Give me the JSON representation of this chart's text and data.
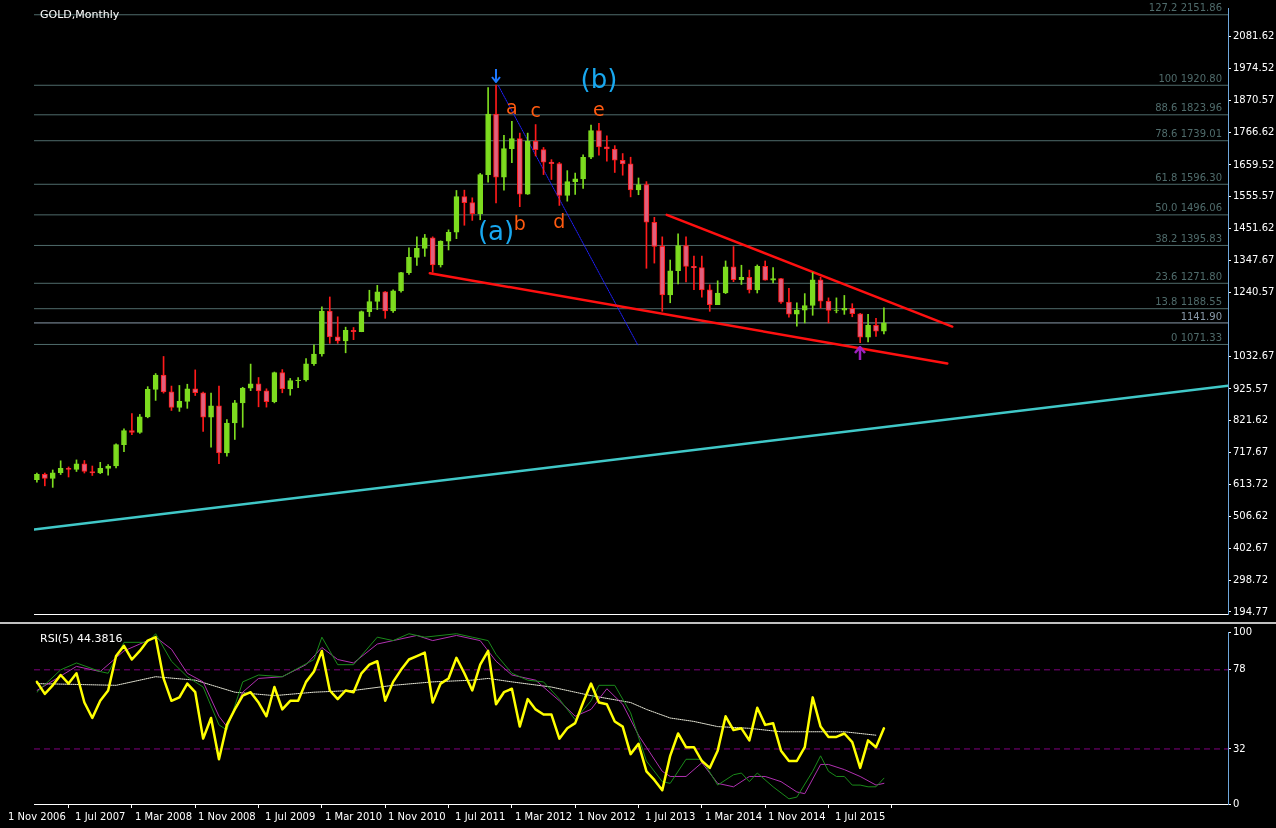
{
  "chart_data": [
    {
      "type": "candlestick",
      "title": "GOLD,Monthly",
      "tick_labels": "y",
      "xlim": [
        "2006-10-20",
        "2019-05-15"
      ],
      "ylim": [
        188,
        2174
      ],
      "yticks": [
        194.77,
        298.72,
        402.67,
        506.62,
        613.72,
        717.67,
        821.62,
        925.57,
        1032.67,
        1240.57,
        1347.67,
        1451.62,
        1555.57,
        1659.52,
        1766.62,
        1870.57,
        1974.52,
        2081.62
      ],
      "x": [
        "2006-11",
        "2006-12",
        "2007-01",
        "2007-02",
        "2007-03",
        "2007-04",
        "2007-05",
        "2007-06",
        "2007-07",
        "2007-08",
        "2007-09",
        "2007-10",
        "2007-11",
        "2007-12",
        "2008-01",
        "2008-02",
        "2008-03",
        "2008-04",
        "2008-05",
        "2008-06",
        "2008-07",
        "2008-08",
        "2008-09",
        "2008-10",
        "2008-11",
        "2008-12",
        "2009-01",
        "2009-02",
        "2009-03",
        "2009-04",
        "2009-05",
        "2009-06",
        "2009-07",
        "2009-08",
        "2009-09",
        "2009-10",
        "2009-11",
        "2009-12",
        "2010-01",
        "2010-02",
        "2010-03",
        "2010-04",
        "2010-05",
        "2010-06",
        "2010-07",
        "2010-08",
        "2010-09",
        "2010-10",
        "2010-11",
        "2010-12",
        "2011-01",
        "2011-02",
        "2011-03",
        "2011-04",
        "2011-05",
        "2011-06",
        "2011-07",
        "2011-08",
        "2011-09",
        "2011-10",
        "2011-11",
        "2011-12",
        "2012-01",
        "2012-02",
        "2012-03",
        "2012-04",
        "2012-05",
        "2012-06",
        "2012-07",
        "2012-08",
        "2012-09",
        "2012-10",
        "2012-11",
        "2012-12",
        "2013-01",
        "2013-02",
        "2013-03",
        "2013-04",
        "2013-05",
        "2013-06",
        "2013-07",
        "2013-08",
        "2013-09",
        "2013-10",
        "2013-11",
        "2013-12",
        "2014-01",
        "2014-02",
        "2014-03",
        "2014-04",
        "2014-05",
        "2014-06",
        "2014-07",
        "2014-08",
        "2014-09",
        "2014-10",
        "2014-11",
        "2014-12",
        "2015-01",
        "2015-02",
        "2015-03",
        "2015-04",
        "2015-05",
        "2015-06",
        "2015-07",
        "2015-08",
        "2015-09",
        "2015-10"
      ],
      "ohlc": [
        [
          628,
          650,
          620,
          646
        ],
        [
          646,
          650,
          608,
          632
        ],
        [
          632,
          660,
          603,
          651
        ],
        [
          651,
          690,
          645,
          665
        ],
        [
          665,
          670,
          637,
          662
        ],
        [
          662,
          693,
          655,
          680
        ],
        [
          680,
          691,
          650,
          655
        ],
        [
          655,
          673,
          642,
          650
        ],
        [
          650,
          685,
          648,
          665
        ],
        [
          665,
          678,
          643,
          673
        ],
        [
          673,
          746,
          667,
          743
        ],
        [
          743,
          795,
          720,
          789
        ],
        [
          789,
          845,
          776,
          783
        ],
        [
          783,
          842,
          780,
          834
        ],
        [
          834,
          933,
          831,
          924
        ],
        [
          924,
          976,
          888,
          971
        ],
        [
          971,
          1032,
          912,
          916
        ],
        [
          916,
          935,
          855,
          865
        ],
        [
          865,
          937,
          852,
          885
        ],
        [
          885,
          941,
          862,
          926
        ],
        [
          926,
          988,
          904,
          913
        ],
        [
          913,
          915,
          786,
          833
        ],
        [
          833,
          912,
          735,
          870
        ],
        [
          870,
          935,
          681,
          716
        ],
        [
          716,
          825,
          705,
          814
        ],
        [
          814,
          888,
          760,
          880
        ],
        [
          880,
          931,
          800,
          928
        ],
        [
          928,
          1007,
          920,
          942
        ],
        [
          942,
          963,
          867,
          919
        ],
        [
          919,
          926,
          866,
          884
        ],
        [
          884,
          981,
          880,
          979
        ],
        [
          979,
          989,
          913,
          926
        ],
        [
          926,
          960,
          905,
          953
        ],
        [
          953,
          963,
          930,
          955
        ],
        [
          955,
          1025,
          951,
          1008
        ],
        [
          1008,
          1070,
          1003,
          1040
        ],
        [
          1040,
          1195,
          1033,
          1181
        ],
        [
          1181,
          1227,
          1075,
          1096
        ],
        [
          1096,
          1162,
          1075,
          1083
        ],
        [
          1083,
          1128,
          1044,
          1118
        ],
        [
          1118,
          1127,
          1087,
          1113
        ],
        [
          1113,
          1181,
          1113,
          1179
        ],
        [
          1179,
          1249,
          1163,
          1212
        ],
        [
          1212,
          1265,
          1186,
          1244
        ],
        [
          1244,
          1245,
          1157,
          1181
        ],
        [
          1181,
          1250,
          1176,
          1247
        ],
        [
          1247,
          1308,
          1243,
          1307
        ],
        [
          1307,
          1388,
          1301,
          1357
        ],
        [
          1357,
          1424,
          1330,
          1386
        ],
        [
          1386,
          1432,
          1360,
          1421
        ],
        [
          1421,
          1424,
          1308,
          1332
        ],
        [
          1332,
          1411,
          1325,
          1410
        ],
        [
          1410,
          1447,
          1381,
          1439
        ],
        [
          1439,
          1576,
          1418,
          1556
        ],
        [
          1556,
          1577,
          1462,
          1536
        ],
        [
          1536,
          1552,
          1478,
          1500
        ],
        [
          1500,
          1632,
          1480,
          1628
        ],
        [
          1628,
          1913,
          1603,
          1826
        ],
        [
          1826,
          1921,
          1535,
          1620
        ],
        [
          1620,
          1757,
          1577,
          1713
        ],
        [
          1713,
          1803,
          1667,
          1746
        ],
        [
          1746,
          1764,
          1523,
          1564
        ],
        [
          1564,
          1764,
          1563,
          1738
        ],
        [
          1738,
          1792,
          1689,
          1710
        ],
        [
          1710,
          1717,
          1628,
          1669
        ],
        [
          1669,
          1677,
          1612,
          1664
        ],
        [
          1664,
          1668,
          1527,
          1560
        ],
        [
          1560,
          1641,
          1541,
          1605
        ],
        [
          1605,
          1633,
          1563,
          1614
        ],
        [
          1614,
          1693,
          1583,
          1685
        ],
        [
          1685,
          1790,
          1680,
          1772
        ],
        [
          1772,
          1796,
          1692,
          1719
        ],
        [
          1719,
          1755,
          1672,
          1712
        ],
        [
          1712,
          1723,
          1635,
          1675
        ],
        [
          1675,
          1697,
          1626,
          1663
        ],
        [
          1663,
          1685,
          1555,
          1578
        ],
        [
          1578,
          1617,
          1562,
          1595
        ],
        [
          1595,
          1605,
          1321,
          1472
        ],
        [
          1472,
          1488,
          1338,
          1393
        ],
        [
          1393,
          1424,
          1180,
          1234
        ],
        [
          1234,
          1348,
          1208,
          1313
        ],
        [
          1313,
          1434,
          1270,
          1395
        ],
        [
          1395,
          1424,
          1276,
          1327
        ],
        [
          1327,
          1361,
          1251,
          1323
        ],
        [
          1323,
          1361,
          1226,
          1250
        ],
        [
          1250,
          1267,
          1180,
          1202
        ],
        [
          1202,
          1280,
          1202,
          1240
        ],
        [
          1240,
          1345,
          1238,
          1326
        ],
        [
          1326,
          1392,
          1277,
          1284
        ],
        [
          1284,
          1331,
          1268,
          1291
        ],
        [
          1291,
          1315,
          1240,
          1250
        ],
        [
          1250,
          1332,
          1240,
          1327
        ],
        [
          1327,
          1345,
          1282,
          1282
        ],
        [
          1282,
          1323,
          1273,
          1287
        ],
        [
          1287,
          1288,
          1206,
          1210
        ],
        [
          1210,
          1255,
          1161,
          1171
        ],
        [
          1171,
          1208,
          1131,
          1184
        ],
        [
          1184,
          1238,
          1142,
          1199
        ],
        [
          1199,
          1307,
          1167,
          1283
        ],
        [
          1283,
          1292,
          1191,
          1213
        ],
        [
          1213,
          1224,
          1142,
          1183
        ],
        [
          1183,
          1224,
          1175,
          1184
        ],
        [
          1184,
          1232,
          1170,
          1190
        ],
        [
          1190,
          1205,
          1162,
          1172
        ],
        [
          1172,
          1173,
          1077,
          1095
        ],
        [
          1095,
          1170,
          1080,
          1134
        ],
        [
          1134,
          1157,
          1098,
          1115
        ],
        [
          1115,
          1191,
          1106,
          1142
        ]
      ],
      "series": [
        {
          "type": "line",
          "color": "#ff1010",
          "x": [
            "2013-06-18",
            "2016-06-20"
          ],
          "values": [
            1496,
            1130
          ]
        },
        {
          "type": "line",
          "color": "#ff1010",
          "x": [
            "2010-12-20",
            "2016-06-01"
          ],
          "values": [
            1305,
            1009
          ]
        },
        {
          "type": "line",
          "color": "#40c8c8",
          "x": [
            "2006-10-20",
            "2019-05-15"
          ],
          "values": [
            465,
            936
          ]
        },
        {
          "type": "line",
          "color": "#2020ff",
          "line_style": "dotted",
          "x": [
            "2011-09-10",
            "2013-02-28"
          ],
          "values": [
            1919,
            1070
          ]
        }
      ],
      "ref_lines": [
        {
          "axis": "y",
          "value": 2151.86,
          "label": "127.2 2151.86",
          "color": "#4f6b6b"
        },
        {
          "axis": "y",
          "value": 1920.8,
          "label": "100 1920.80",
          "color": "#4f6b6b"
        },
        {
          "axis": "y",
          "value": 1823.96,
          "label": "88.6 1823.96",
          "color": "#4f6b6b"
        },
        {
          "axis": "y",
          "value": 1739.01,
          "label": "78.6 1739.01",
          "color": "#4f6b6b"
        },
        {
          "axis": "y",
          "value": 1596.3,
          "label": "61.8 1596.30",
          "color": "#4f6b6b"
        },
        {
          "axis": "y",
          "value": 1496.06,
          "label": "50.0 1496.06",
          "color": "#4f6b6b"
        },
        {
          "axis": "y",
          "value": 1395.83,
          "label": "38.2 1395.83",
          "color": "#4f6b6b"
        },
        {
          "axis": "y",
          "value": 1271.8,
          "label": "23.6 1271.80",
          "color": "#4f6b6b"
        },
        {
          "axis": "y",
          "value": 1188.55,
          "label": "13.8 1188.55",
          "color": "#4f6b6b"
        },
        {
          "axis": "y",
          "value": 1071.33,
          "label": "0 1071.33",
          "color": "#4f6b6b"
        },
        {
          "axis": "y",
          "value": 1141.9,
          "label": "1141.90",
          "color": "#8a9aaa"
        }
      ],
      "annotations": [
        {
          "text": "(a)",
          "x": "2011-09",
          "y": 1535
        },
        {
          "text": "(b)",
          "x": "2012-10",
          "y": 1796
        },
        {
          "text": "a",
          "x": "2011-11",
          "y": 1803
        },
        {
          "text": "b",
          "x": "2011-12",
          "y": 1523
        },
        {
          "text": "c",
          "x": "2012-02",
          "y": 1792
        },
        {
          "text": "d",
          "x": "2012-05",
          "y": 1527
        },
        {
          "text": "e",
          "x": "2012-10",
          "y": 1796
        }
      ]
    },
    {
      "type": "line",
      "title": "RSI(5) 44.3816",
      "xlim": [
        "2006-10-20",
        "2019-05-15"
      ],
      "xticks": [
        {
          "value": "2006-11",
          "label": "1 Nov 2006"
        },
        {
          "value": "2007-07",
          "label": "1 Jul 2007"
        },
        {
          "value": "2008-03",
          "label": "1 Mar 2008"
        },
        {
          "value": "2008-11",
          "label": "1 Nov 2008"
        },
        {
          "value": "2009-07",
          "label": "1 Jul 2009"
        },
        {
          "value": "2010-03",
          "label": "1 Mar 2010"
        },
        {
          "value": "2010-11",
          "label": "1 Nov 2010"
        },
        {
          "value": "2011-07",
          "label": "1 Jul 2011"
        },
        {
          "value": "2012-03",
          "label": "1 Mar 2012"
        },
        {
          "value": "2012-11",
          "label": "1 Nov 2012"
        },
        {
          "value": "2013-07",
          "label": "1 Jul 2013"
        },
        {
          "value": "2014-03",
          "label": "1 Mar 2014"
        },
        {
          "value": "2014-11",
          "label": "1 Nov 2014"
        },
        {
          "value": "2015-07",
          "label": "1 Jul 2015"
        }
      ],
      "ylim": [
        0,
        100
      ],
      "yticks": [
        0,
        32,
        78,
        100
      ],
      "x": [
        "2006-11",
        "2006-12",
        "2007-01",
        "2007-02",
        "2007-03",
        "2007-04",
        "2007-05",
        "2007-06",
        "2007-07",
        "2007-08",
        "2007-09",
        "2007-10",
        "2007-11",
        "2007-12",
        "2008-01",
        "2008-02",
        "2008-03",
        "2008-04",
        "2008-05",
        "2008-06",
        "2008-07",
        "2008-08",
        "2008-09",
        "2008-10",
        "2008-11",
        "2008-12",
        "2009-01",
        "2009-02",
        "2009-03",
        "2009-04",
        "2009-05",
        "2009-06",
        "2009-07",
        "2009-08",
        "2009-09",
        "2009-10",
        "2009-11",
        "2009-12",
        "2010-01",
        "2010-02",
        "2010-03",
        "2010-04",
        "2010-05",
        "2010-06",
        "2010-07",
        "2010-08",
        "2010-09",
        "2010-10",
        "2010-11",
        "2010-12",
        "2011-01",
        "2011-02",
        "2011-03",
        "2011-04",
        "2011-05",
        "2011-06",
        "2011-07",
        "2011-08",
        "2011-09",
        "2011-10",
        "2011-11",
        "2011-12",
        "2012-01",
        "2012-02",
        "2012-03",
        "2012-04",
        "2012-05",
        "2012-06",
        "2012-07",
        "2012-08",
        "2012-09",
        "2012-10",
        "2012-11",
        "2012-12",
        "2013-01",
        "2013-02",
        "2013-03",
        "2013-04",
        "2013-05",
        "2013-06",
        "2013-07",
        "2013-08",
        "2013-09",
        "2013-10",
        "2013-11",
        "2013-12",
        "2014-01",
        "2014-02",
        "2014-03",
        "2014-04",
        "2014-05",
        "2014-06",
        "2014-07",
        "2014-08",
        "2014-09",
        "2014-10",
        "2014-11",
        "2014-12",
        "2015-01",
        "2015-02",
        "2015-03",
        "2015-04",
        "2015-05",
        "2015-06",
        "2015-07",
        "2015-08",
        "2015-09",
        "2015-10"
      ],
      "series": [
        {
          "color": "#ffff00",
          "values": [
            71,
            64,
            69,
            75,
            70,
            76,
            59,
            50,
            60,
            66,
            86,
            92,
            84,
            89,
            95,
            97,
            73,
            60,
            62,
            70,
            65,
            38,
            50,
            26,
            46,
            55,
            63,
            65,
            59,
            51,
            68,
            55,
            60,
            60,
            71,
            77,
            89,
            66,
            61,
            66,
            65,
            76,
            81,
            83,
            60,
            71,
            78,
            84,
            86,
            88,
            59,
            70,
            73,
            85,
            76,
            66,
            81,
            89,
            58,
            65,
            67,
            45,
            61,
            55,
            52,
            52,
            38,
            44,
            47,
            59,
            70,
            59,
            58,
            48,
            45,
            29,
            35,
            19,
            14,
            8,
            28,
            41,
            33,
            33,
            25,
            21,
            31,
            51,
            43,
            44,
            37,
            56,
            46,
            47,
            31,
            25,
            25,
            33,
            62,
            45,
            39,
            39,
            41,
            36,
            21,
            37,
            33,
            44
          ]
        },
        {
          "color": "#1a8a1a",
          "x": [
            "2006-11",
            "2007-02",
            "2007-04",
            "2007-07",
            "2007-08",
            "2007-10",
            "2008-01",
            "2008-02",
            "2008-04",
            "2008-06",
            "2008-08",
            "2008-10",
            "2008-11",
            "2009-01",
            "2009-03",
            "2009-06",
            "2009-08",
            "2009-10",
            "2009-11",
            "2010-01",
            "2010-03",
            "2010-06",
            "2010-08",
            "2010-10",
            "2010-12",
            "2011-04",
            "2011-06",
            "2011-08",
            "2011-09",
            "2011-11",
            "2012-01",
            "2012-03",
            "2012-05",
            "2012-07",
            "2012-09",
            "2012-10",
            "2012-12",
            "2013-02",
            "2013-04",
            "2013-06",
            "2013-07",
            "2013-09",
            "2013-11",
            "2014-01",
            "2014-03",
            "2014-04",
            "2014-05",
            "2014-06",
            "2014-08",
            "2014-10",
            "2014-11",
            "2015-01",
            "2015-02",
            "2015-03",
            "2015-04",
            "2015-05",
            "2015-06",
            "2015-07",
            "2015-08",
            "2015-09",
            "2015-10"
          ],
          "values": [
            65,
            78,
            82,
            77,
            76,
            94,
            94,
            99,
            83,
            74,
            68,
            46,
            43,
            71,
            75,
            74,
            79,
            84,
            97,
            81,
            81,
            97,
            95,
            99,
            97,
            99,
            97,
            95,
            87,
            76,
            72,
            71,
            61,
            49,
            60,
            69,
            69,
            53,
            25,
            13,
            12,
            26,
            26,
            11,
            17,
            18,
            13,
            18,
            10,
            3,
            4,
            19,
            28,
            19,
            16,
            16,
            11,
            11,
            10,
            10,
            15
          ]
        },
        {
          "color": "#b030b0",
          "x": [
            "2006-11",
            "2007-04",
            "2007-07",
            "2007-10",
            "2007-12",
            "2008-02",
            "2008-04",
            "2008-06",
            "2008-08",
            "2008-10",
            "2008-11",
            "2009-01",
            "2009-03",
            "2009-06",
            "2009-09",
            "2009-11",
            "2010-01",
            "2010-03",
            "2010-06",
            "2010-08",
            "2010-11",
            "2011-01",
            "2011-04",
            "2011-07",
            "2011-09",
            "2011-11",
            "2012-02",
            "2012-05",
            "2012-07",
            "2012-09",
            "2012-11",
            "2013-01",
            "2013-03",
            "2013-04",
            "2013-06",
            "2013-07",
            "2013-09",
            "2013-11",
            "2014-01",
            "2014-03",
            "2014-05",
            "2014-07",
            "2014-09",
            "2014-11",
            "2014-12",
            "2015-02",
            "2015-03",
            "2015-05",
            "2015-07",
            "2015-09",
            "2015-10"
          ],
          "values": [
            66,
            80,
            77,
            89,
            93,
            97,
            90,
            76,
            71,
            51,
            45,
            65,
            73,
            74,
            81,
            91,
            84,
            82,
            93,
            95,
            98,
            95,
            98,
            95,
            83,
            75,
            72,
            60,
            51,
            55,
            67,
            58,
            40,
            33,
            19,
            16,
            16,
            24,
            12,
            10,
            16,
            16,
            13,
            7,
            6,
            23,
            23,
            20,
            16,
            11,
            12
          ]
        },
        {
          "color": "#e8e8d8",
          "line_style": "dotted",
          "x": [
            "2006-11",
            "2007-09",
            "2008-02",
            "2008-07",
            "2008-12",
            "2009-05",
            "2009-10",
            "2010-03",
            "2010-08",
            "2011-01",
            "2011-06",
            "2011-08",
            "2011-11",
            "2012-04",
            "2012-09",
            "2013-02",
            "2013-04",
            "2013-07",
            "2013-10",
            "2014-01",
            "2014-05",
            "2014-09",
            "2015-01",
            "2015-05",
            "2015-09"
          ],
          "values": [
            70,
            69,
            74,
            72,
            65,
            63,
            65,
            66,
            69,
            71,
            72,
            73,
            71,
            68,
            63,
            59,
            55,
            50,
            48,
            45,
            44,
            42,
            42,
            42,
            40
          ]
        }
      ],
      "ref_lines": [
        {
          "axis": "y",
          "value": 78,
          "color": "#800080",
          "line_style": "dashed"
        },
        {
          "axis": "y",
          "value": 32,
          "color": "#800080",
          "line_style": "dashed"
        }
      ]
    }
  ]
}
